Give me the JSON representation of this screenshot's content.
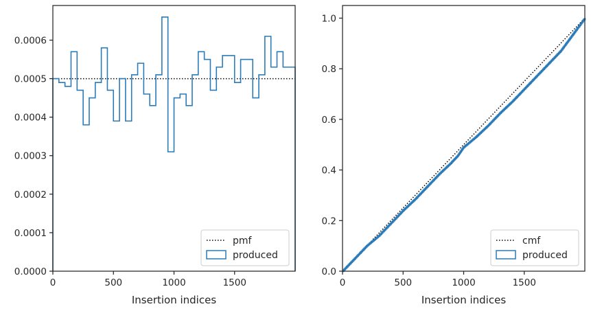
{
  "colors": {
    "produced": "#2b7bb9",
    "reference": "#000000",
    "axes": "#262626"
  },
  "chart_data": [
    {
      "type": "line",
      "subtype": "step-histogram",
      "xlabel": "Insertion indices",
      "ylabel": "",
      "xlim": [
        0,
        2000
      ],
      "ylim": [
        0,
        0.00069
      ],
      "xticks": [
        "0",
        "500",
        "1000",
        "1500"
      ],
      "yticks": [
        "0.0000",
        "0.0001",
        "0.0002",
        "0.0003",
        "0.0004",
        "0.0005",
        "0.0006"
      ],
      "grid": false,
      "legend_position": "lower-right",
      "series": [
        {
          "name": "pmf",
          "style": "dotted",
          "x": [
            0,
            2000
          ],
          "y": [
            0.0005,
            0.0005
          ]
        },
        {
          "name": "produced",
          "style": "step",
          "bin_edges": [
            0,
            50,
            100,
            150,
            200,
            250,
            300,
            350,
            400,
            450,
            500,
            550,
            600,
            650,
            700,
            750,
            800,
            850,
            900,
            950,
            1000,
            1050,
            1100,
            1150,
            1200,
            1250,
            1300,
            1350,
            1400,
            1450,
            1500,
            1550,
            1600,
            1650,
            1700,
            1750,
            1800,
            1850,
            1900,
            1950,
            2000
          ],
          "values": [
            0.0005,
            0.00049,
            0.00048,
            0.00057,
            0.00047,
            0.00038,
            0.00045,
            0.00049,
            0.00058,
            0.00047,
            0.00039,
            0.0005,
            0.00039,
            0.00051,
            0.00054,
            0.00046,
            0.00043,
            0.00051,
            0.00066,
            0.00031,
            0.00045,
            0.00046,
            0.00043,
            0.00051,
            0.00057,
            0.00055,
            0.00047,
            0.00053,
            0.00056,
            0.00056,
            0.00049,
            0.00055,
            0.00055,
            0.00045,
            0.00051,
            0.00061,
            0.00053,
            0.00057,
            0.00053,
            0.00053
          ]
        }
      ]
    },
    {
      "type": "line",
      "xlabel": "Insertion indices",
      "ylabel": "",
      "xlim": [
        0,
        2000
      ],
      "ylim": [
        0,
        1.05
      ],
      "xticks": [
        "0",
        "500",
        "1000",
        "1500"
      ],
      "yticks": [
        "0.0",
        "0.2",
        "0.4",
        "0.6",
        "0.8",
        "1.0"
      ],
      "grid": false,
      "legend_position": "lower-right",
      "series": [
        {
          "name": "cmf",
          "style": "dotted",
          "x": [
            0,
            2000
          ],
          "y": [
            0,
            1.0
          ]
        },
        {
          "name": "produced",
          "style": "step",
          "x": [
            0,
            100,
            200,
            300,
            400,
            500,
            600,
            700,
            800,
            900,
            950,
            1000,
            1100,
            1200,
            1300,
            1400,
            1500,
            1600,
            1700,
            1800,
            1900,
            2000
          ],
          "y": [
            0,
            0.05,
            0.1,
            0.14,
            0.19,
            0.24,
            0.285,
            0.335,
            0.385,
            0.43,
            0.455,
            0.49,
            0.53,
            0.575,
            0.625,
            0.67,
            0.72,
            0.77,
            0.82,
            0.87,
            0.935,
            1.0
          ]
        }
      ]
    }
  ]
}
